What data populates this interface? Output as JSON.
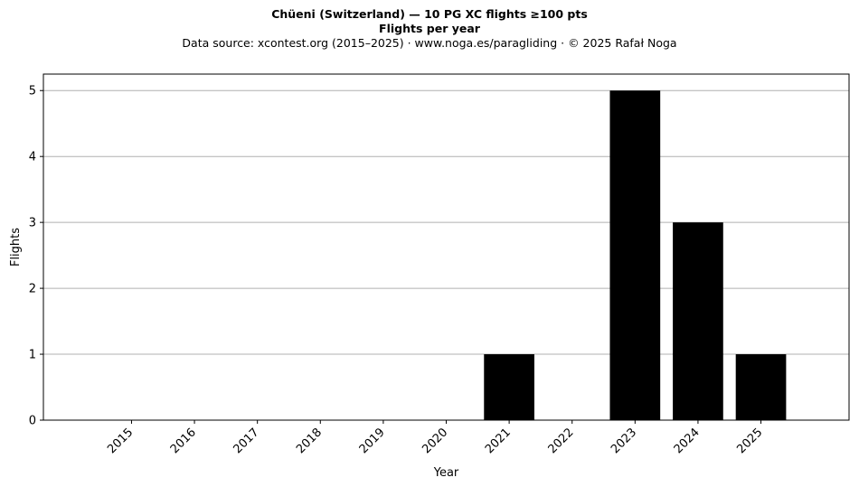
{
  "header": {
    "title": "Chüeni (Switzerland)  —  10 PG XC flights ≥100 pts",
    "subtitle": "Flights per year",
    "source": "Data source: xcontest.org (2015–2025)  ·  www.noga.es/paragliding  ·  © 2025 Rafał Noga"
  },
  "chart_data": {
    "type": "bar",
    "title": "Chüeni (Switzerland)  —  10 PG XC flights ≥100 pts",
    "subtitle": "Flights per year",
    "xlabel": "Year",
    "ylabel": "Flights",
    "categories": [
      "2015",
      "2016",
      "2017",
      "2018",
      "2019",
      "2020",
      "2021",
      "2022",
      "2023",
      "2024",
      "2025"
    ],
    "values": [
      0,
      0,
      0,
      0,
      0,
      0,
      1,
      0,
      5,
      3,
      1
    ],
    "ylim": [
      0,
      5.25
    ],
    "yticks": [
      0,
      1,
      2,
      3,
      4,
      5
    ],
    "grid": "y",
    "bar_color": "#000000",
    "grid_color": "#b0b0b0"
  }
}
